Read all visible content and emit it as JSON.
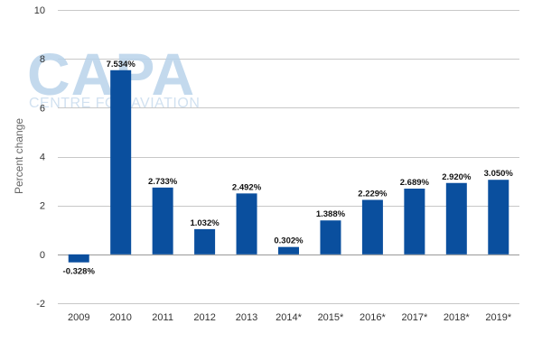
{
  "chart_data": {
    "type": "bar",
    "categories": [
      "2009",
      "2010",
      "2011",
      "2012",
      "2013",
      "2014*",
      "2015*",
      "2016*",
      "2017*",
      "2018*",
      "2019*"
    ],
    "values": [
      -0.328,
      7.534,
      2.733,
      1.032,
      2.492,
      0.302,
      1.388,
      2.229,
      2.689,
      2.92,
      3.05
    ],
    "data_labels": [
      "-0.328%",
      "7.534%",
      "2.733%",
      "1.032%",
      "2.492%",
      "0.302%",
      "1.388%",
      "2.229%",
      "2.689%",
      "2.920%",
      "3.050%"
    ],
    "ylabel": "Percent change",
    "xlabel": "",
    "ylim": [
      -2,
      10
    ],
    "yticks": [
      -2,
      0,
      2,
      4,
      6,
      8,
      10
    ],
    "grid": true,
    "bar_color": "#0a4f9e",
    "watermark": {
      "logo": "CAPA",
      "subtitle": "CENTRE FOR AVIATION"
    }
  }
}
